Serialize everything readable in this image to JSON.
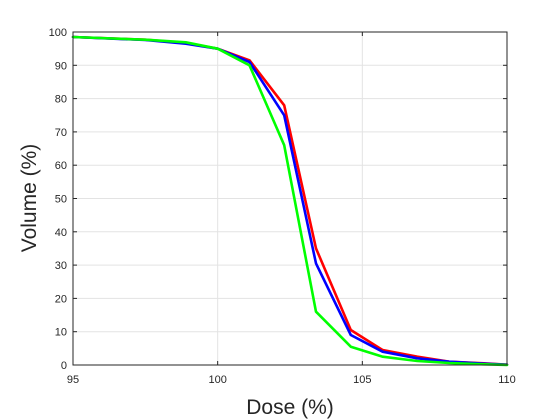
{
  "chart_data": {
    "type": "line",
    "title": "",
    "xlabel": "Dose (%)",
    "ylabel": "Volume (%)",
    "xlim": [
      95,
      110
    ],
    "ylim": [
      0,
      100
    ],
    "xticks": [
      95,
      100,
      105,
      110
    ],
    "yticks": [
      0,
      10,
      20,
      30,
      40,
      50,
      60,
      70,
      80,
      90,
      100
    ],
    "grid": true,
    "legend": "none",
    "series": [
      {
        "color": "#ff0000",
        "x": [
          95,
          97.5,
          98.9,
          100,
          101.1,
          102.3,
          103.4,
          104.6,
          105.7,
          106.9,
          108,
          109.2,
          110
        ],
        "y": [
          98.5,
          97.7,
          96.7,
          95.0,
          91.5,
          78.0,
          35.0,
          10.5,
          4.5,
          2.5,
          1.0,
          0.5,
          0.1
        ]
      },
      {
        "color": "#0000ff",
        "x": [
          95,
          97.5,
          98.9,
          100,
          101.1,
          102.3,
          103.4,
          104.6,
          105.7,
          106.9,
          108,
          109.2,
          110
        ],
        "y": [
          98.5,
          97.6,
          96.5,
          95.0,
          91.0,
          75.0,
          30.5,
          9.0,
          4.0,
          2.0,
          1.0,
          0.4,
          0.1
        ]
      },
      {
        "color": "#00ff00",
        "x": [
          95,
          97.5,
          98.9,
          100,
          101.1,
          102.3,
          103.4,
          104.6,
          105.7,
          106.9,
          108,
          109.2,
          110
        ],
        "y": [
          98.5,
          97.7,
          96.9,
          95.0,
          90.0,
          66.0,
          16.0,
          5.5,
          2.5,
          1.2,
          0.6,
          0.2,
          0.0
        ]
      }
    ]
  }
}
